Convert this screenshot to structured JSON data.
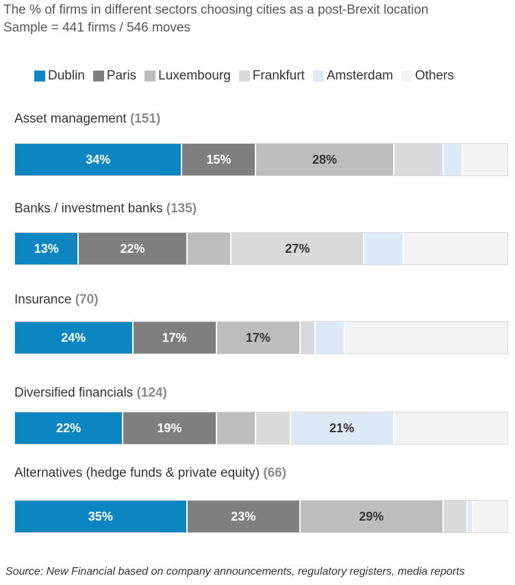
{
  "title": "The % of firms in different sectors choosing cities as a post-Brexit location",
  "subtitle": "Sample = 441 firms / 546 moves",
  "source": "Source: New Financial based on company announcements, regulatory registers, media reports",
  "chart_data": {
    "type": "bar",
    "orientation": "horizontal",
    "stacked": true,
    "normalized_percent": true,
    "legend_position": "top",
    "title": "The % of firms in different sectors choosing cities as a post-Brexit location",
    "subtitle": "Sample = 441 firms / 546 moves",
    "series": [
      {
        "name": "Dublin",
        "color": "#0b86c0",
        "text_color": "#ffffff"
      },
      {
        "name": "Paris",
        "color": "#7f7f7f",
        "text_color": "#ffffff"
      },
      {
        "name": "Luxembourg",
        "color": "#bdbdbd",
        "text_color": "#333333"
      },
      {
        "name": "Frankfurt",
        "color": "#dadada",
        "text_color": "#333333"
      },
      {
        "name": "Amsterdam",
        "color": "#dce9f7",
        "text_color": "#333333"
      },
      {
        "name": "Others",
        "color": "#f3f3f3",
        "text_color": "#333333"
      }
    ],
    "categories": [
      {
        "name": "Asset management",
        "count": "(151)",
        "values": [
          34,
          15,
          28,
          10,
          4,
          9
        ],
        "labels": [
          "34%",
          "15%",
          "28%",
          "",
          "",
          ""
        ]
      },
      {
        "name": "Banks / investment banks",
        "count": "(135)",
        "values": [
          13,
          22,
          9,
          27,
          8,
          21
        ],
        "labels": [
          "13%",
          "22%",
          "",
          "27%",
          "",
          ""
        ]
      },
      {
        "name": "Insurance",
        "count": "(70)",
        "values": [
          24,
          17,
          17,
          3,
          6,
          33
        ],
        "labels": [
          "24%",
          "17%",
          "17%",
          "",
          "",
          ""
        ]
      },
      {
        "name": "Diversified financials",
        "count": "(124)",
        "values": [
          22,
          19,
          8,
          7,
          21,
          23
        ],
        "labels": [
          "22%",
          "19%",
          "",
          "",
          "21%",
          ""
        ]
      },
      {
        "name": "Alternatives (hedge funds & private equity)",
        "count": "(66)",
        "values": [
          35,
          23,
          29,
          5,
          1,
          7
        ],
        "labels": [
          "35%",
          "23%",
          "29%",
          "",
          "",
          ""
        ]
      }
    ]
  }
}
